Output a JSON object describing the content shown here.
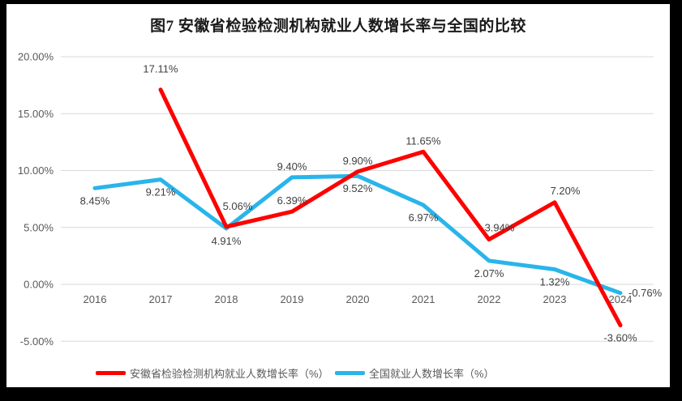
{
  "chart_data": {
    "type": "line",
    "title": "图7 安徽省检验检测机构就业人数增长率与全国的比较",
    "categories": [
      "2016",
      "2017",
      "2018",
      "2019",
      "2020",
      "2021",
      "2022",
      "2023",
      "2024"
    ],
    "series": [
      {
        "name": "安徽省检验检测机构就业人数增长率（%）",
        "color": "#FE0000",
        "values": [
          null,
          17.11,
          5.06,
          6.39,
          9.9,
          11.65,
          3.94,
          7.2,
          -3.6
        ],
        "label_placement": [
          null,
          "above-far",
          "above-far-right",
          "above",
          "above",
          "above",
          "above-right",
          "above-right",
          "below"
        ]
      },
      {
        "name": "全国就业人数增长率（%）",
        "color": "#29B5EA",
        "values": [
          8.45,
          9.21,
          4.91,
          9.4,
          9.52,
          6.97,
          2.07,
          1.32,
          -0.76
        ],
        "label_placement": [
          "below",
          "below",
          "below",
          "above",
          "below",
          "below",
          "below",
          "below",
          "right"
        ]
      }
    ],
    "ylim": [
      -5,
      20
    ],
    "ytick_step": 5,
    "yticks": [
      "20.00%",
      "15.00%",
      "10.00%",
      "5.00%",
      "0.00%",
      "-5.00%"
    ],
    "label_format": "0.00%",
    "grid": true,
    "legend_position": "bottom",
    "grid_color": "#D9D9D9",
    "axis_text_color": "#595959",
    "data_label_color": "#404040"
  }
}
